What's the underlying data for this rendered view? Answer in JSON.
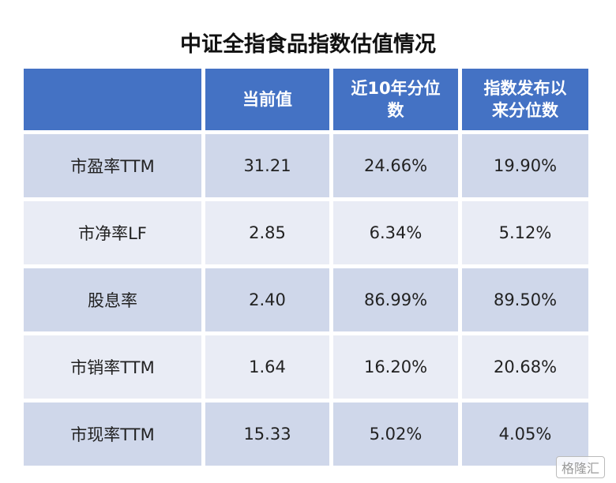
{
  "title": "中证全指食品指数估值情况",
  "table": {
    "header": [
      "当前值",
      "近10年分位数",
      "指数发布以来分位数"
    ],
    "rows": [
      [
        "市盈率TTM",
        "31.21",
        "24.66%",
        "19.90%"
      ],
      [
        "市净率LF",
        "2.85",
        "6.34%",
        "5.12%"
      ],
      [
        "股息率",
        "2.40",
        "86.99%",
        "89.50%"
      ],
      [
        "市销率TTM",
        "1.64",
        "16.20%",
        "20.68%"
      ],
      [
        "市现率TTM",
        "15.33",
        "5.02%",
        "4.05%"
      ]
    ]
  },
  "watermark": "格隆汇"
}
